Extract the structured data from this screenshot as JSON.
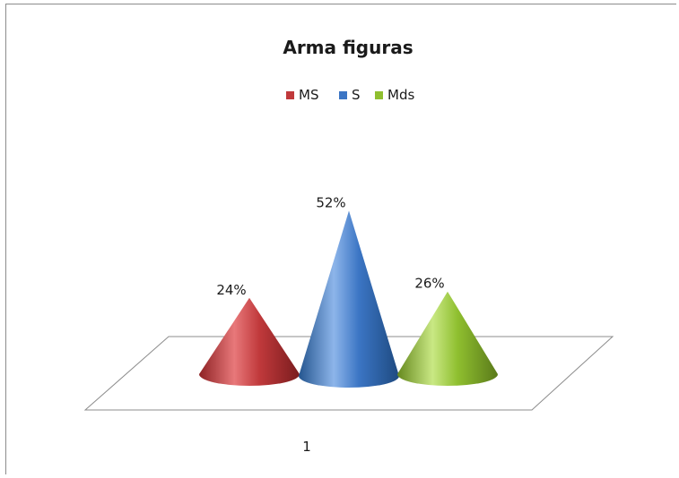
{
  "chart_data": {
    "type": "bar",
    "title": "Arma figuras",
    "categories": [
      "1"
    ],
    "series": [
      {
        "name": "MS",
        "values": [
          24
        ],
        "label": "24%",
        "color": "#c0393b"
      },
      {
        "name": "S",
        "values": [
          52
        ],
        "label": "52%",
        "color": "#3b75c4"
      },
      {
        "name": "Mds",
        "values": [
          26
        ],
        "label": "26%",
        "color": "#8fbf2f"
      }
    ],
    "bar_shape": "cone",
    "legend_position": "top",
    "ylim": [
      0,
      60
    ],
    "grid": false
  }
}
